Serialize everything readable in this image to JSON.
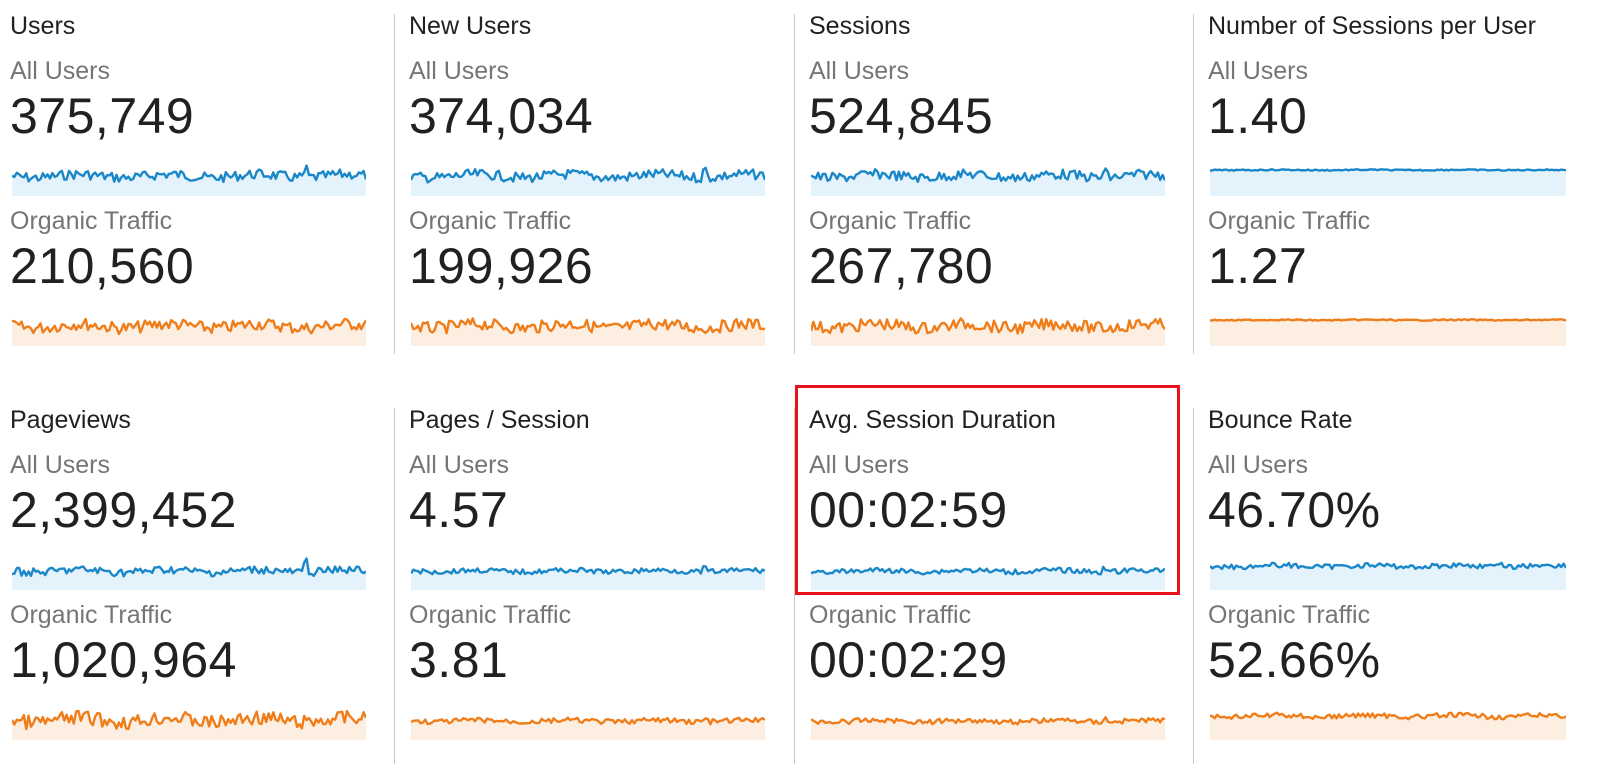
{
  "colors": {
    "all_users_line": "#1a87c9",
    "all_users_fill": "#e4f2fb",
    "organic_line": "#ef7d1a",
    "organic_fill": "#fdeee2",
    "highlight": "#e8141d"
  },
  "highlighted_card": "avg-session-duration",
  "cards": [
    {
      "title": "Users",
      "segments": [
        {
          "label": "All Users",
          "value": "375,749"
        },
        {
          "label": "Organic Traffic",
          "value": "210,560"
        }
      ]
    },
    {
      "title": "New Users",
      "segments": [
        {
          "label": "All Users",
          "value": "374,034"
        },
        {
          "label": "Organic Traffic",
          "value": "199,926"
        }
      ]
    },
    {
      "title": "Sessions",
      "segments": [
        {
          "label": "All Users",
          "value": "524,845"
        },
        {
          "label": "Organic Traffic",
          "value": "267,780"
        }
      ]
    },
    {
      "title": "Number of Sessions per User",
      "segments": [
        {
          "label": "All Users",
          "value": "1.40"
        },
        {
          "label": "Organic Traffic",
          "value": "1.27"
        }
      ]
    },
    {
      "title": "Pageviews",
      "segments": [
        {
          "label": "All Users",
          "value": "2,399,452"
        },
        {
          "label": "Organic Traffic",
          "value": "1,020,964"
        }
      ]
    },
    {
      "title": "Pages / Session",
      "segments": [
        {
          "label": "All Users",
          "value": "4.57"
        },
        {
          "label": "Organic Traffic",
          "value": "3.81"
        }
      ]
    },
    {
      "title": "Avg. Session Duration",
      "segments": [
        {
          "label": "All Users",
          "value": "00:02:59"
        },
        {
          "label": "Organic Traffic",
          "value": "00:02:29"
        }
      ]
    },
    {
      "title": "Bounce Rate",
      "segments": [
        {
          "label": "All Users",
          "value": "46.70%"
        },
        {
          "label": "Organic Traffic",
          "value": "52.66%"
        }
      ]
    }
  ]
}
